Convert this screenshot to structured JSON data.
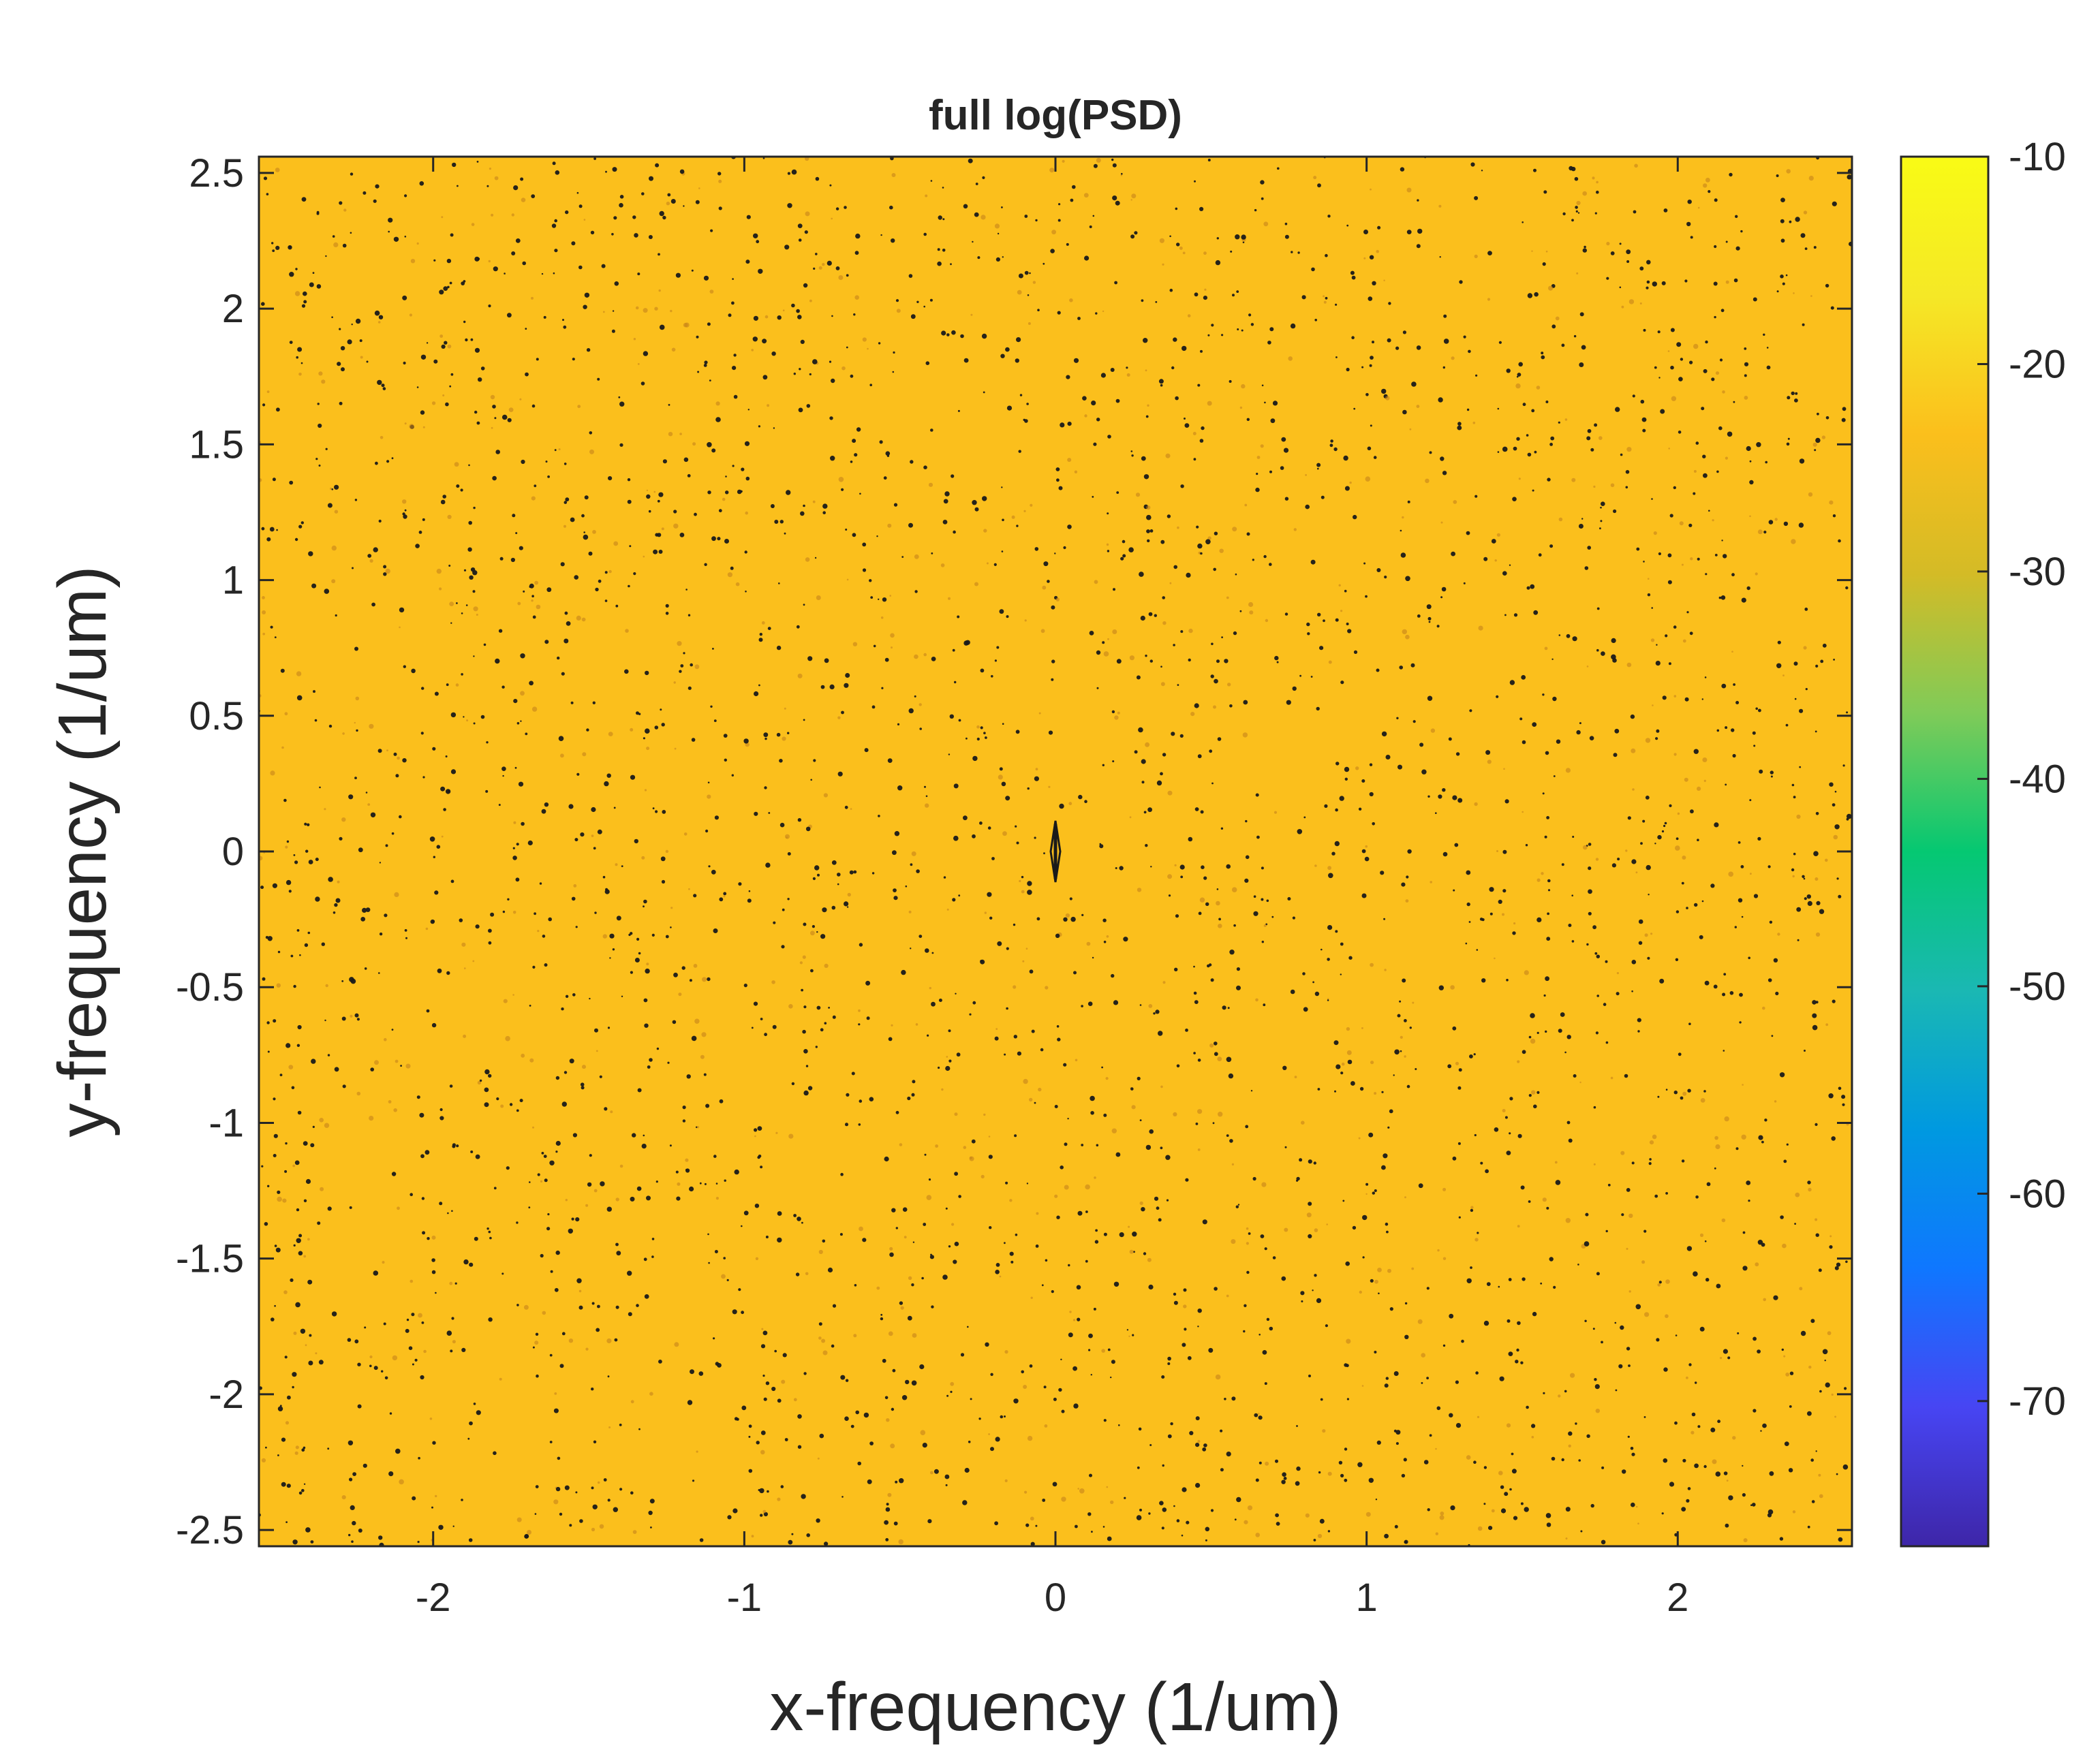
{
  "chart_data": {
    "type": "heatmap",
    "title": "full log(PSD)",
    "xlabel": "x-frequency (1/um)",
    "ylabel": "y-frequency (1/um)",
    "xlim": [
      -2.56,
      2.56
    ],
    "ylim": [
      -2.56,
      2.56
    ],
    "x_ticks": [
      -2,
      -1,
      0,
      1,
      2
    ],
    "x_tick_labels": [
      "-2",
      "-1",
      "0",
      "1",
      "2"
    ],
    "y_ticks": [
      2.5,
      2,
      1.5,
      1,
      0.5,
      0,
      -0.5,
      -1,
      -1.5,
      -2,
      -2.5
    ],
    "y_tick_labels": [
      "2.5",
      "2",
      "1.5",
      "1",
      "0.5",
      "0",
      "-0.5",
      "-1",
      "-1.5",
      "-2",
      "-2.5"
    ],
    "background_value": -22,
    "background_color": "#fbbf1c",
    "speckle_color": "#1a1a1a",
    "speckle_count": 3500,
    "central_feature": {
      "x": 0,
      "y_from": -0.1,
      "y_to": 0.1,
      "color": "#1a1a1a"
    },
    "colorbar": {
      "clim": [
        -77,
        -10
      ],
      "ticks": [
        -10,
        -20,
        -30,
        -40,
        -50,
        -60,
        -70
      ],
      "tick_labels": [
        "-10",
        "-20",
        "-30",
        "-40",
        "-50",
        "-60",
        "-70"
      ],
      "colors_bottom_to_top": [
        "#3e26a8",
        "#4745f3",
        "#0f77ff",
        "#0099e0",
        "#1ab8b3",
        "#05c872",
        "#80cb58",
        "#d4bb26",
        "#fbbf1c",
        "#f5e826",
        "#f9fb15"
      ]
    },
    "grid": false,
    "legend": "none"
  }
}
